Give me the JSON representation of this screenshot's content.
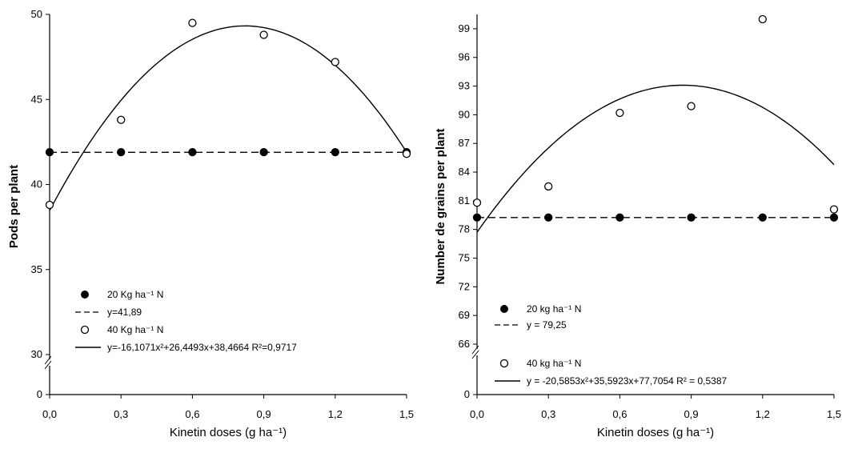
{
  "chart_data": [
    {
      "type": "scatter",
      "xlabel": "Kinetin doses (g ha⁻¹)",
      "ylabel": "Pods per plant",
      "x_ticks": [
        "0,0",
        "0,3",
        "0,6",
        "0,9",
        "1,2",
        "1,5"
      ],
      "y_ticks": [
        "0",
        "30",
        "35",
        "40",
        "45",
        "50"
      ],
      "axis_break": true,
      "xlim": [
        0,
        1.5
      ],
      "ylim": [
        30,
        50
      ],
      "legend_position": "bottom-left",
      "series": [
        {
          "name": "20 Kg ha⁻¹ N",
          "marker": "filled-circle",
          "x": [
            0,
            0.3,
            0.6,
            0.9,
            1.2,
            1.5
          ],
          "y": [
            41.9,
            41.9,
            41.9,
            41.9,
            41.9,
            41.9
          ],
          "fit_label": "y=41,89",
          "fit": {
            "type": "constant",
            "c": 41.89,
            "style": "dashed"
          }
        },
        {
          "name": "40 Kg ha⁻¹ N",
          "marker": "open-circle",
          "x": [
            0,
            0.3,
            0.6,
            0.9,
            1.2,
            1.5
          ],
          "y": [
            38.8,
            43.8,
            49.5,
            48.8,
            47.2,
            41.8
          ],
          "fit_label": "y=-16,1071x²+26,4493x+38,4664 R²=0,9717",
          "fit": {
            "type": "quadratic",
            "a": -16.1071,
            "b": 26.4493,
            "c": 38.4664,
            "style": "solid"
          }
        }
      ]
    },
    {
      "type": "scatter",
      "xlabel": "Kinetin doses (g ha⁻¹)",
      "ylabel": "Number de grains per plant",
      "x_ticks": [
        "0,0",
        "0,3",
        "0,6",
        "0,9",
        "1,2",
        "1,5"
      ],
      "y_ticks": [
        "0",
        "66",
        "69",
        "72",
        "75",
        "78",
        "81",
        "84",
        "87",
        "90",
        "93",
        "96",
        "99"
      ],
      "axis_break": true,
      "xlim": [
        0,
        1.5
      ],
      "ylim": [
        66,
        100.5
      ],
      "legend_position": "bottom-left",
      "series": [
        {
          "name": "20 kg ha⁻¹ N",
          "marker": "filled-circle",
          "x": [
            0,
            0.3,
            0.6,
            0.9,
            1.2,
            1.5
          ],
          "y": [
            79.25,
            79.25,
            79.25,
            79.25,
            79.25,
            79.25
          ],
          "fit_label": "y = 79,25",
          "fit": {
            "type": "constant",
            "c": 79.25,
            "style": "dashed"
          }
        },
        {
          "name": "40 kg ha⁻¹ N",
          "marker": "open-circle",
          "x": [
            0,
            0.3,
            0.6,
            0.9,
            1.2,
            1.5
          ],
          "y": [
            80.8,
            82.5,
            90.2,
            90.9,
            100.0,
            80.1
          ],
          "fit_label": "y = -20,5853x²+35,5923x+77,7054  R² = 0,5387",
          "fit": {
            "type": "quadratic",
            "a": -20.5853,
            "b": 35.5923,
            "c": 77.7054,
            "style": "solid"
          }
        }
      ]
    }
  ]
}
